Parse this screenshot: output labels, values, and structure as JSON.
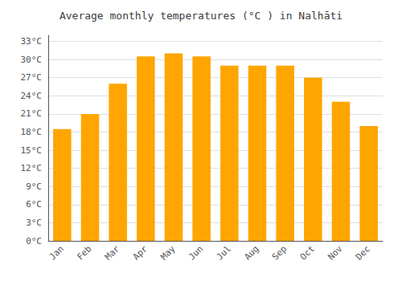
{
  "chart_data": {
    "type": "bar",
    "title": "Average monthly temperatures (°C ) in Nalhāti",
    "categories": [
      "Jan",
      "Feb",
      "Mar",
      "Apr",
      "May",
      "Jun",
      "Jul",
      "Aug",
      "Sep",
      "Oct",
      "Nov",
      "Dec"
    ],
    "values": [
      18.5,
      21.0,
      26.0,
      30.5,
      31.0,
      30.5,
      29.0,
      29.0,
      29.0,
      27.0,
      23.0,
      19.0
    ],
    "color": "#FFA500",
    "ylim": [
      0,
      34
    ],
    "yticks": [
      {
        "value": 0,
        "label": "0°C"
      },
      {
        "value": 3,
        "label": "3°C"
      },
      {
        "value": 6,
        "label": "6°C"
      },
      {
        "value": 9,
        "label": "9°C"
      },
      {
        "value": 12,
        "label": "12°C"
      },
      {
        "value": 15,
        "label": "15°C"
      },
      {
        "value": 18,
        "label": "18°C"
      },
      {
        "value": 21,
        "label": "21°C"
      },
      {
        "value": 24,
        "label": "24°C"
      },
      {
        "value": 27,
        "label": "27°C"
      },
      {
        "value": 30,
        "label": "30°C"
      },
      {
        "value": 33,
        "label": "33°C"
      }
    ],
    "grid": true
  }
}
